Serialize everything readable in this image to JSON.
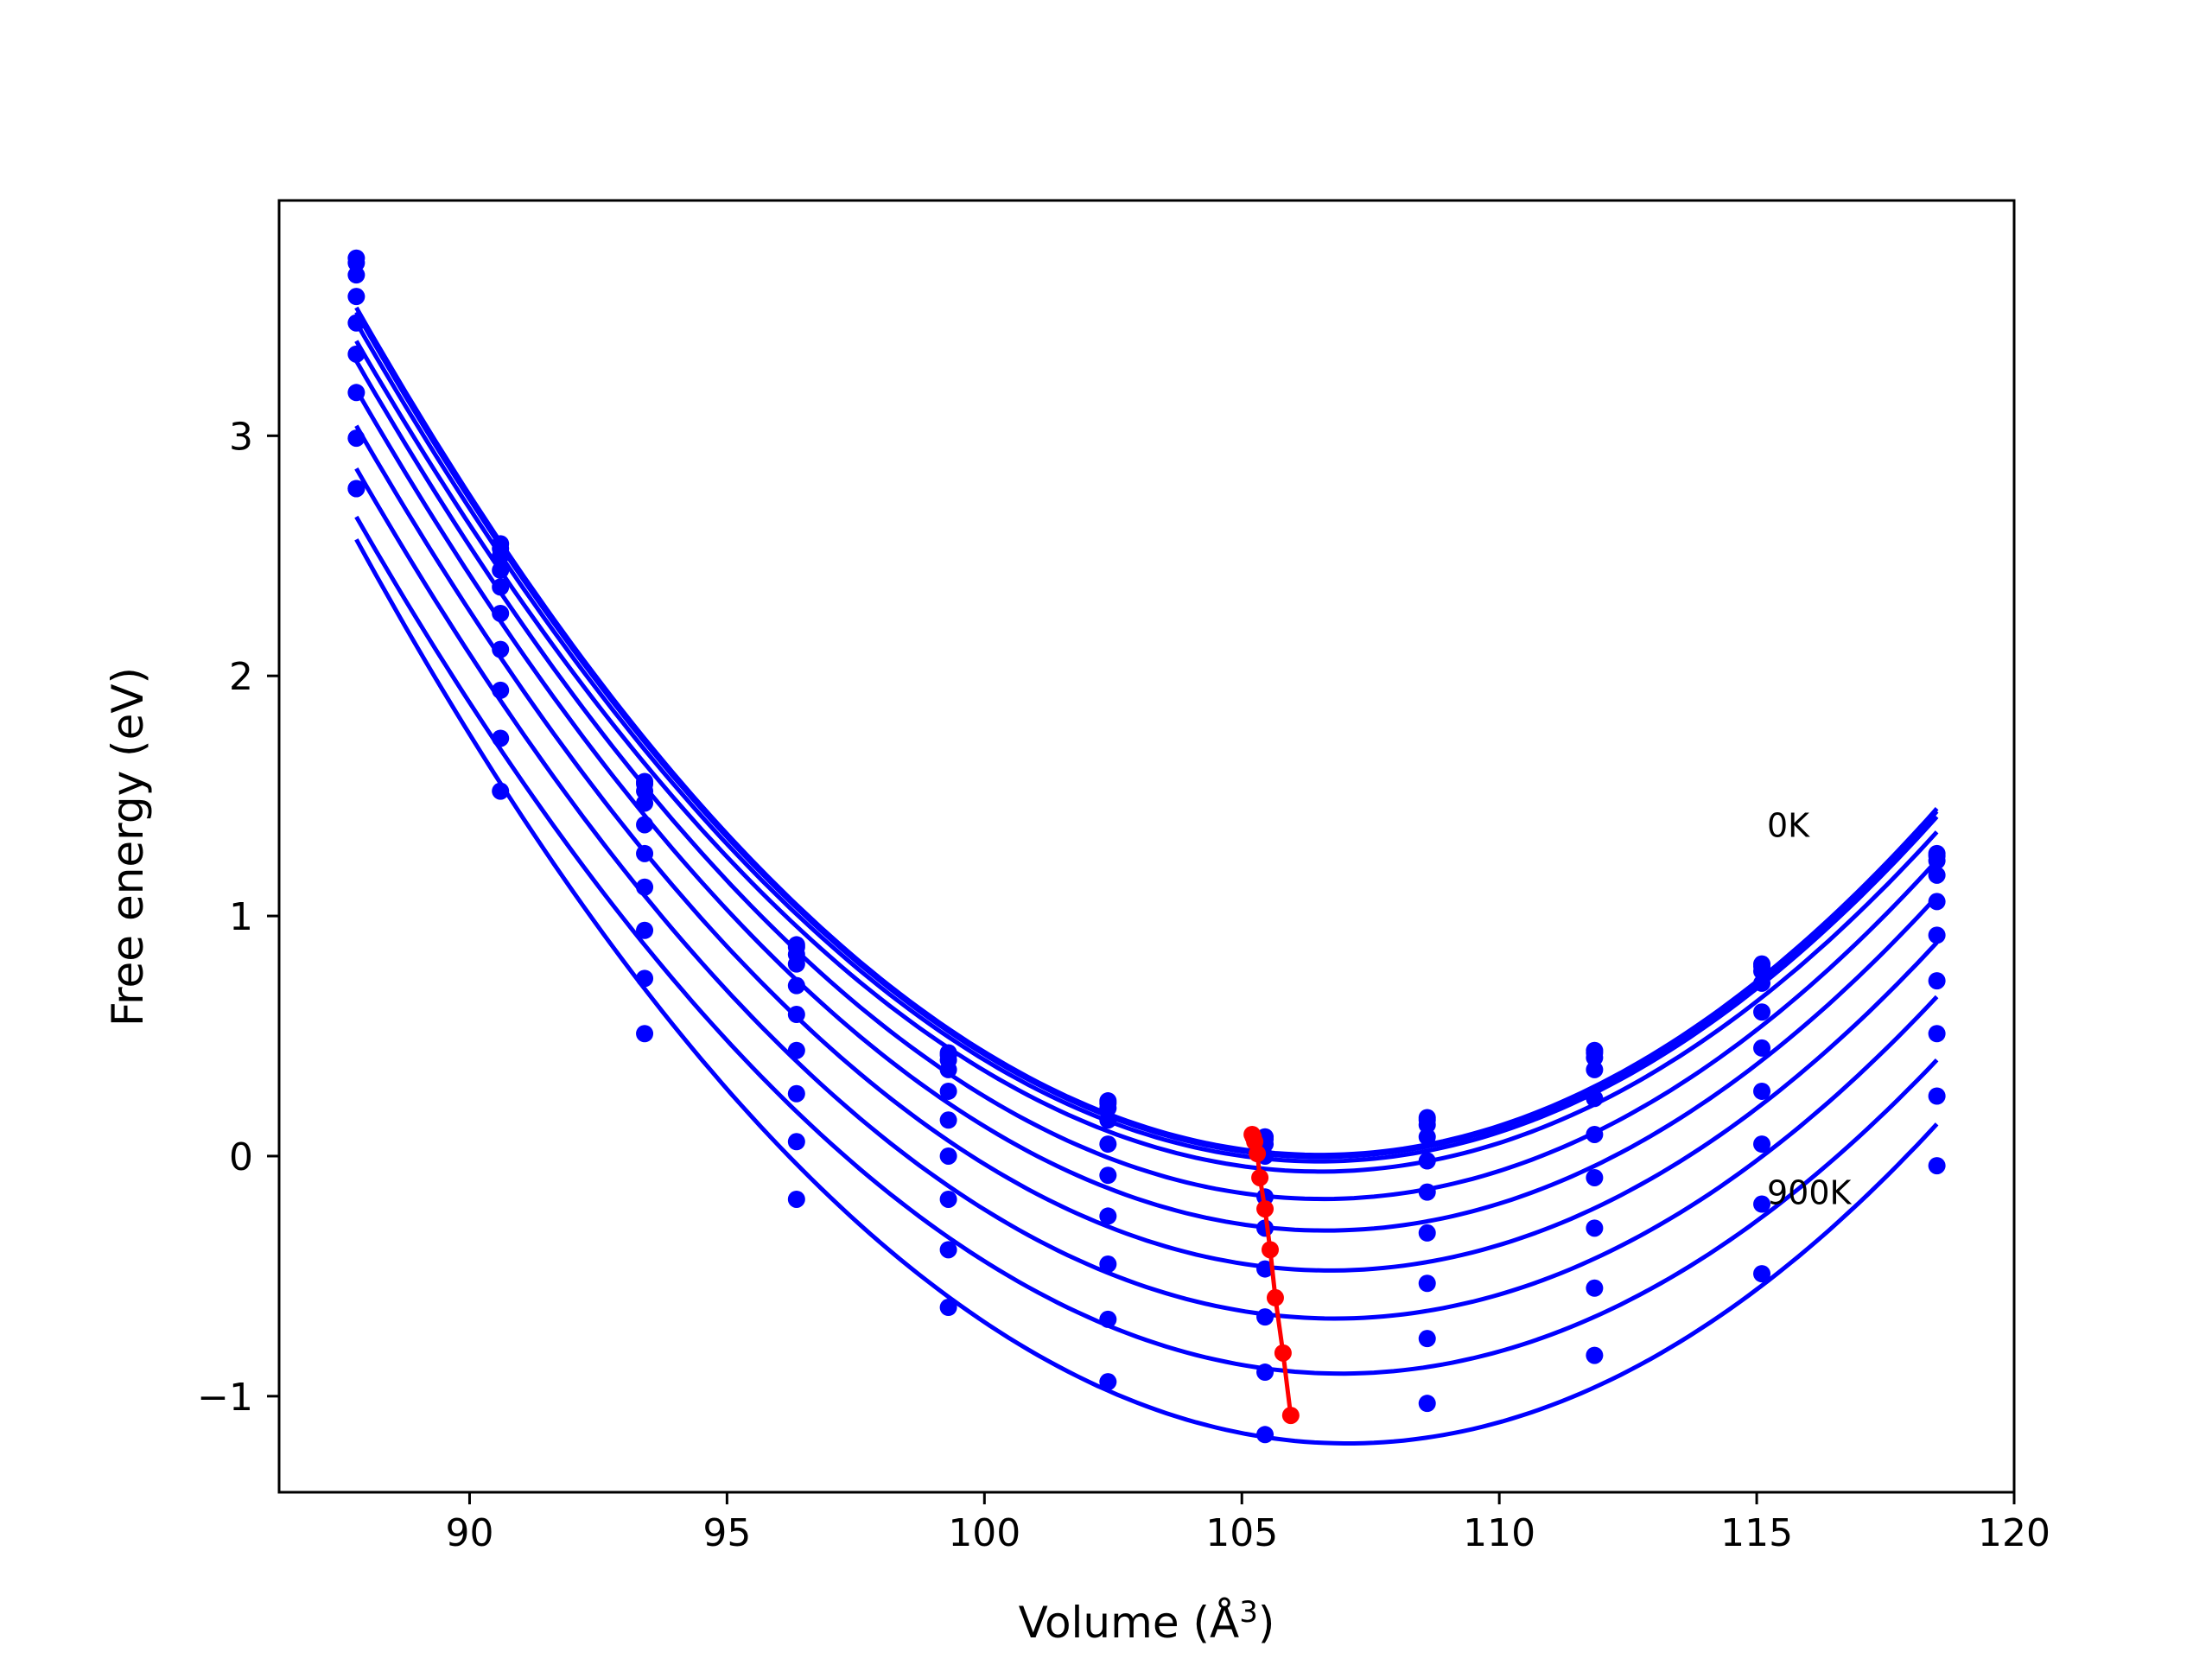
{
  "chart_data": {
    "type": "line",
    "title": "",
    "xlabel": "Volume (Å",
    "xlabel_sup": "3",
    "xlabel_close": ")",
    "ylabel": "Free energy (eV)",
    "xlim": [
      86.3,
      120.0
    ],
    "ylim": [
      -1.4,
      3.98
    ],
    "xticks": [
      90,
      95,
      100,
      105,
      110,
      115,
      120
    ],
    "xtick_labels": [
      "90",
      "95",
      "100",
      "105",
      "110",
      "115",
      "120"
    ],
    "yticks": [
      -1,
      0,
      1,
      2,
      3
    ],
    "ytick_labels": [
      "−1",
      "0",
      "1",
      "2",
      "3"
    ],
    "grid": false,
    "legend": "none",
    "curve_color": "#0000ff",
    "min_color": "#ff0000",
    "x_points": [
      87.8,
      90.6,
      93.4,
      96.35,
      99.3,
      102.4,
      105.45,
      108.6,
      111.85,
      115.1,
      118.5
    ],
    "series": [
      {
        "values": [
          3.74,
          2.55,
          1.56,
          0.88,
          0.43,
          0.23,
          0.08,
          0.16,
          0.44,
          0.8,
          1.26
        ]
      },
      {
        "values": [
          3.72,
          2.53,
          1.55,
          0.87,
          0.42,
          0.22,
          0.07,
          0.15,
          0.43,
          0.79,
          1.25
        ]
      },
      {
        "values": [
          3.67,
          2.5,
          1.52,
          0.84,
          0.4,
          0.2,
          0.05,
          0.13,
          0.41,
          0.77,
          1.23
        ]
      },
      {
        "values": [
          3.58,
          2.44,
          1.47,
          0.8,
          0.36,
          0.15,
          0.0,
          0.08,
          0.36,
          0.72,
          1.17
        ]
      },
      {
        "values": [
          3.47,
          2.37,
          1.38,
          0.71,
          0.27,
          0.05,
          -0.17,
          -0.02,
          0.24,
          0.6,
          1.06
        ]
      },
      {
        "values": [
          3.34,
          2.26,
          1.26,
          0.59,
          0.15,
          -0.08,
          -0.3,
          -0.15,
          0.09,
          0.45,
          0.92
        ]
      },
      {
        "values": [
          3.18,
          2.11,
          1.12,
          0.44,
          0.0,
          -0.25,
          -0.47,
          -0.32,
          -0.09,
          0.27,
          0.73
        ]
      },
      {
        "values": [
          2.99,
          1.94,
          0.94,
          0.26,
          -0.18,
          -0.45,
          -0.67,
          -0.53,
          -0.3,
          0.05,
          0.51
        ]
      },
      {
        "values": [
          2.78,
          1.74,
          0.74,
          0.06,
          -0.39,
          -0.68,
          -0.9,
          -0.76,
          -0.55,
          -0.2,
          0.25
        ]
      },
      {
        "values": [
          2.78,
          1.52,
          0.51,
          -0.18,
          -0.63,
          -0.94,
          -1.16,
          -1.03,
          -0.83,
          -0.49,
          -0.04
        ]
      }
    ],
    "minima": {
      "x": [
        105.2,
        105.22,
        105.25,
        105.3,
        105.35,
        105.45,
        105.55,
        105.65,
        105.8,
        105.95
      ],
      "y": [
        0.09,
        0.08,
        0.06,
        0.01,
        -0.09,
        -0.22,
        -0.39,
        -0.59,
        -0.82,
        -1.08
      ]
    },
    "annotations": [
      {
        "text": "0K",
        "x": 115.2,
        "y": 1.33
      },
      {
        "text": "900K",
        "x": 115.2,
        "y": -0.2
      }
    ]
  }
}
